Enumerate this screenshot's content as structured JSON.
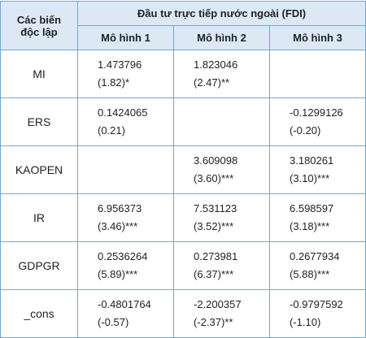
{
  "table": {
    "header": {
      "variable_label": [
        "Các biến",
        "độc lập"
      ],
      "group_label": "Đầu tư trực tiếp nước ngoài (FDI)",
      "models": [
        "Mô hình 1",
        "Mô hình 2",
        "Mô hình 3"
      ]
    },
    "rows": [
      {
        "name": "MI",
        "cells": [
          {
            "coef": "1.473796",
            "t": "(1.82)*"
          },
          {
            "coef": "1.823046",
            "t": "(2.47)**"
          },
          null
        ]
      },
      {
        "name": "ERS",
        "cells": [
          {
            "coef": "0.1424065",
            "t": "(0.21)"
          },
          null,
          {
            "coef": "-0.1299126",
            "t": "(-0.20)"
          }
        ]
      },
      {
        "name": "KAOPEN",
        "cells": [
          null,
          {
            "coef": "3.609098",
            "t": "(3.60)***"
          },
          {
            "coef": "3.180261",
            "t": "(3.10)***"
          }
        ]
      },
      {
        "name": "IR",
        "cells": [
          {
            "coef": "6.956373",
            "t": "(3.46)***"
          },
          {
            "coef": "7.531123",
            "t": "(3.52)***"
          },
          {
            "coef": "6.598597",
            "t": "(3.18)***"
          }
        ]
      },
      {
        "name": "GDPGR",
        "cells": [
          {
            "coef": "0.2536264",
            "t": "(5.89)***"
          },
          {
            "coef": "0.273981",
            "t": "(6.37)***"
          },
          {
            "coef": "0.2677934",
            "t": "(5.88)***"
          }
        ]
      },
      {
        "name": "_cons",
        "cells": [
          {
            "coef": "-0.4801764",
            "t": "(-0.57)"
          },
          {
            "coef": "-2.200357",
            "t": "(-2.37)**"
          },
          {
            "coef": "-0.9797592",
            "t": "(-1.10)"
          }
        ]
      }
    ]
  }
}
